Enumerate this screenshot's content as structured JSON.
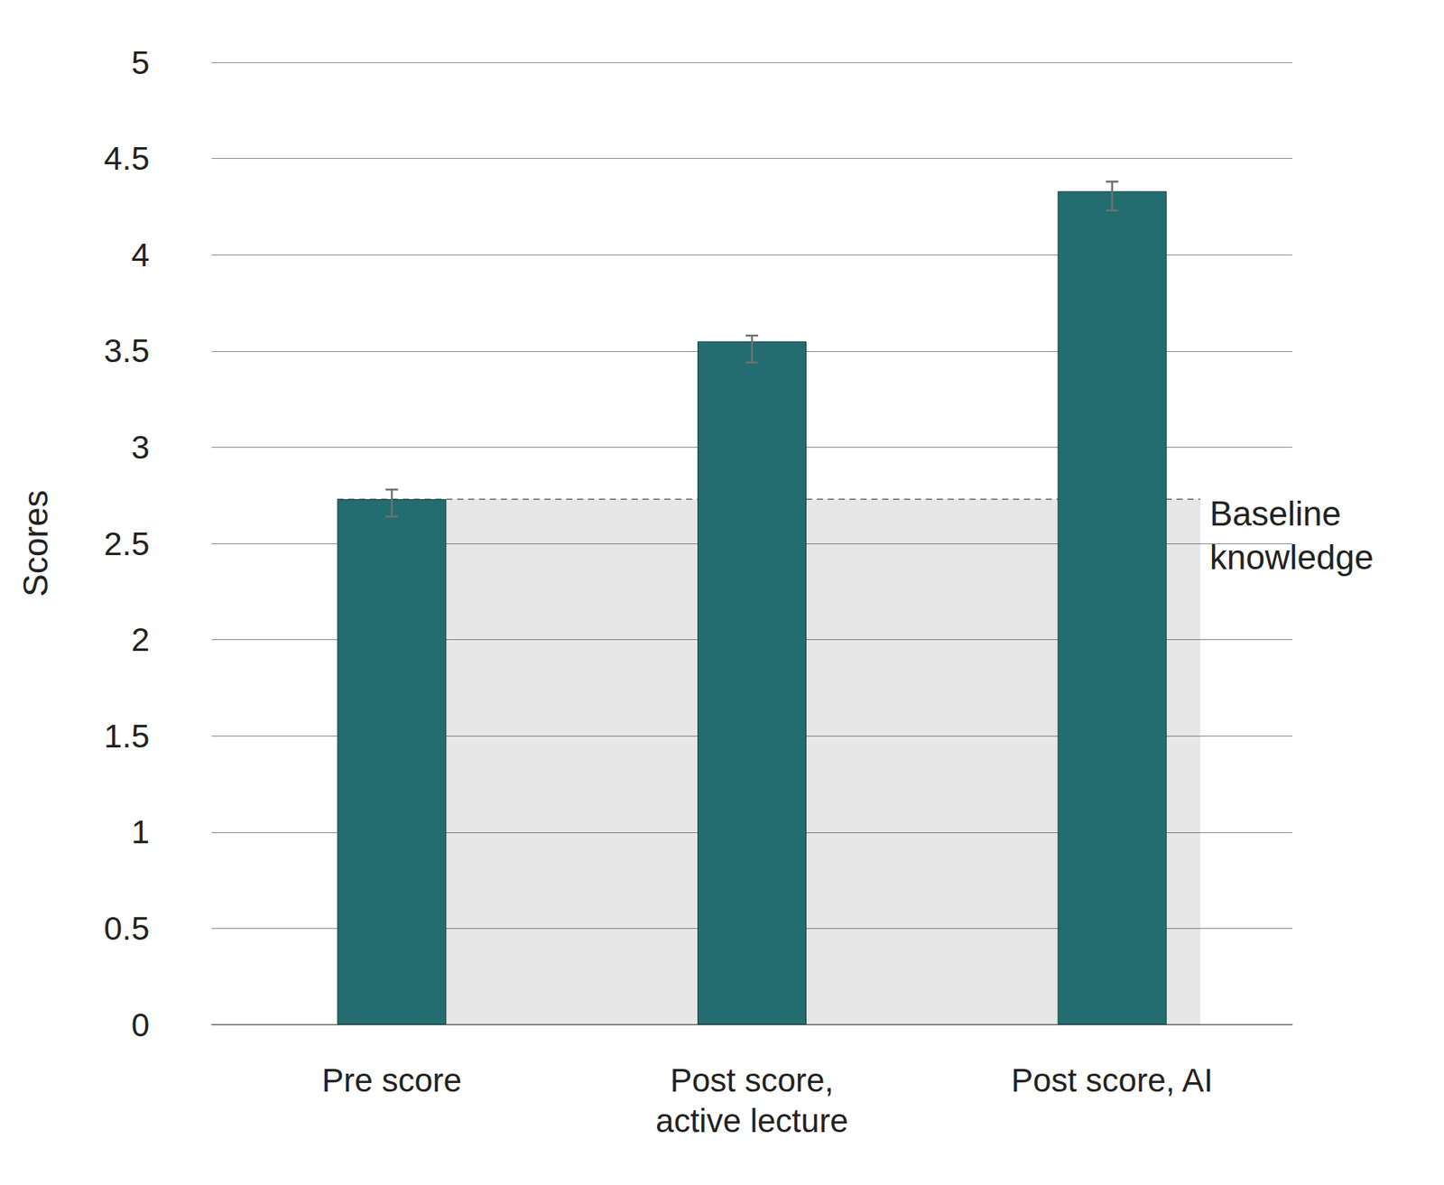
{
  "chart_data": {
    "type": "bar",
    "categories": [
      "Pre score",
      "Post score,\nactive lecture",
      "Post score, AI"
    ],
    "values": [
      2.73,
      3.55,
      4.33
    ],
    "error_low": [
      2.64,
      3.44,
      4.23
    ],
    "error_high": [
      2.78,
      3.58,
      4.38
    ],
    "color": "#236c70",
    "y_label": "Scores",
    "ylim": [
      0,
      5
    ],
    "yticks": [
      0,
      0.5,
      1,
      1.5,
      2,
      2.5,
      3,
      3.5,
      4,
      4.5,
      5
    ],
    "grid": true,
    "baseline": {
      "label": "Baseline\nknowledge",
      "value": 2.73
    }
  }
}
